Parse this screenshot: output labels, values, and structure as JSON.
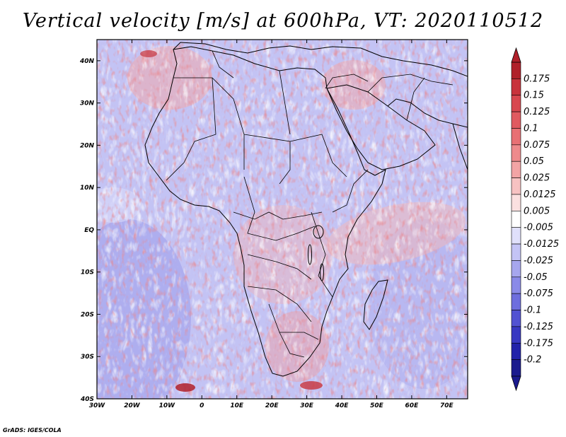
{
  "title": "Vertical velocity [m/s] at 600hPa, VT: 2020110512",
  "credit": "GrADS: IGES/COLA",
  "map": {
    "lon_range": [
      -30,
      76
    ],
    "lat_range": [
      -40,
      45
    ],
    "lon_ticks": [
      {
        "value": -30,
        "label": "30W"
      },
      {
        "value": -20,
        "label": "20W"
      },
      {
        "value": -10,
        "label": "10W"
      },
      {
        "value": 0,
        "label": "0"
      },
      {
        "value": 10,
        "label": "10E"
      },
      {
        "value": 20,
        "label": "20E"
      },
      {
        "value": 30,
        "label": "30E"
      },
      {
        "value": 40,
        "label": "40E"
      },
      {
        "value": 50,
        "label": "50E"
      },
      {
        "value": 60,
        "label": "60E"
      },
      {
        "value": 70,
        "label": "70E"
      }
    ],
    "lat_ticks": [
      {
        "value": 40,
        "label": "40N"
      },
      {
        "value": 30,
        "label": "30N"
      },
      {
        "value": 20,
        "label": "20N"
      },
      {
        "value": 10,
        "label": "10N"
      },
      {
        "value": 0,
        "label": "EQ"
      },
      {
        "value": -10,
        "label": "10S"
      },
      {
        "value": -20,
        "label": "20S"
      },
      {
        "value": -30,
        "label": "30S"
      },
      {
        "value": -40,
        "label": "40S"
      }
    ]
  },
  "colorbar": {
    "labels": [
      "0.175",
      "0.15",
      "0.125",
      "0.1",
      "0.075",
      "0.05",
      "0.025",
      "0.0125",
      "0.005",
      "-0.005",
      "-0.0125",
      "-0.025",
      "-0.05",
      "-0.075",
      "-0.1",
      "-0.125",
      "-0.175",
      "-0.2"
    ],
    "colors": [
      "#b0202a",
      "#c8333c",
      "#d8474f",
      "#e05a60",
      "#e87074",
      "#ee8a8c",
      "#f2a4a5",
      "#f7c2c2",
      "#fbe0e0",
      "#ffffff",
      "#e0e0fb",
      "#c4c4f6",
      "#a6a6ee",
      "#8a8ae8",
      "#6e6ede",
      "#5252d2",
      "#3838c2",
      "#2222aa",
      "#1a1a8e"
    ]
  }
}
